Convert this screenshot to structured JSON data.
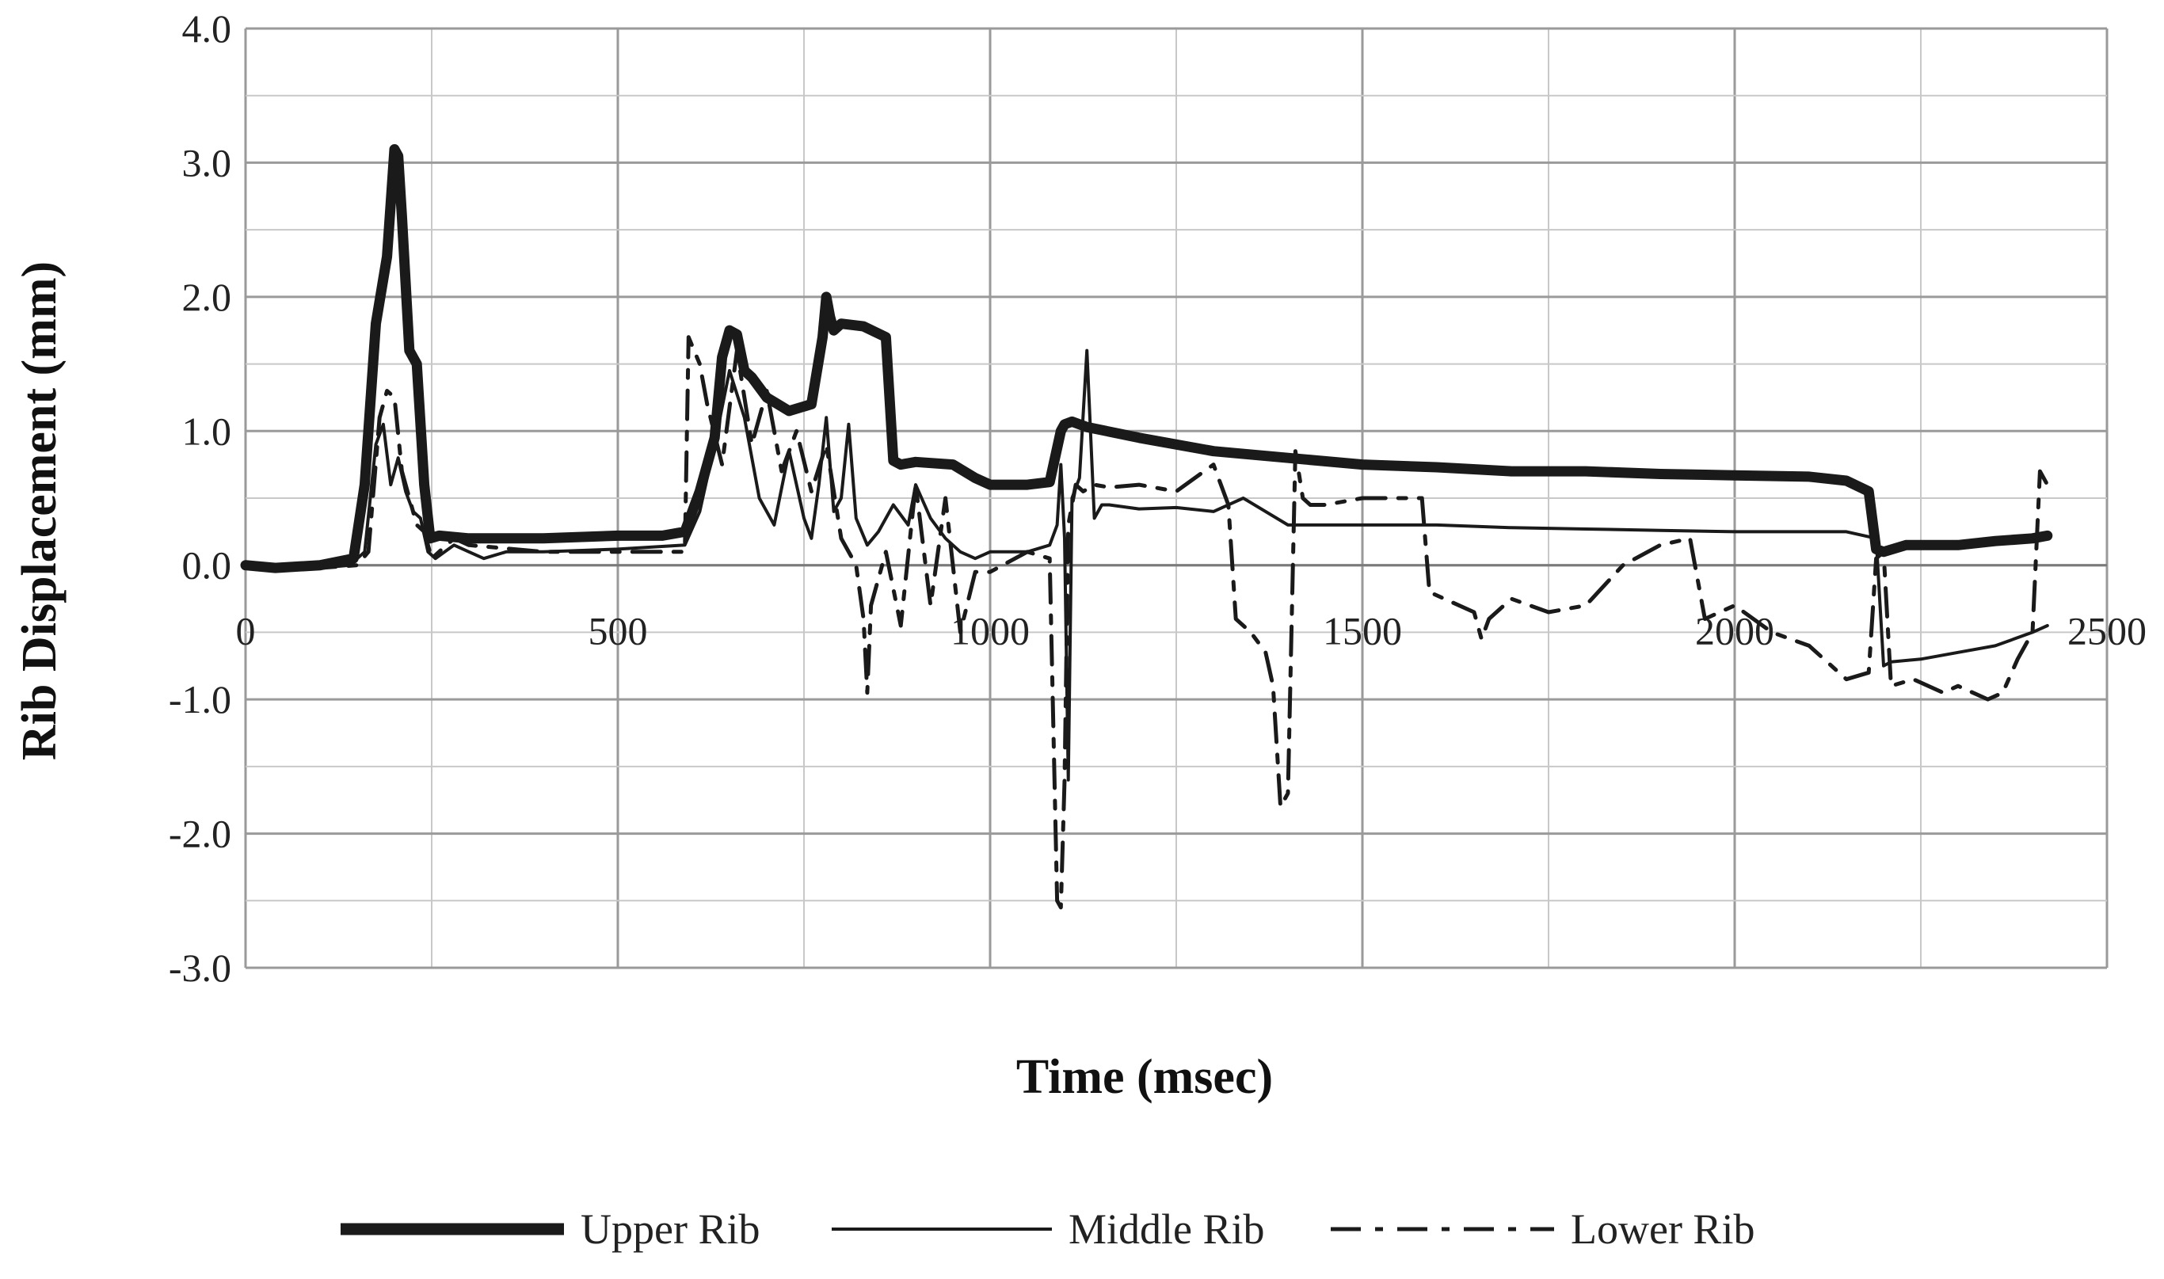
{
  "chart_data": {
    "type": "line",
    "title": "",
    "xlabel": "Time (msec)",
    "ylabel": "Rib Displacement (mm)",
    "xlim": [
      0,
      2500
    ],
    "ylim": [
      -3.0,
      4.0
    ],
    "x_major_ticks": [
      0,
      500,
      1000,
      1500,
      2000,
      2500
    ],
    "x_tick_labels": [
      "0",
      "500",
      "1000",
      "1500",
      "2000",
      "2500"
    ],
    "x_minor_step": 250,
    "y_major_ticks": [
      -3.0,
      -2.0,
      -1.0,
      0.0,
      1.0,
      2.0,
      3.0,
      4.0
    ],
    "y_tick_labels": [
      "-3.0",
      "-2.0",
      "-1.0",
      "0.0",
      "1.0",
      "2.0",
      "3.0",
      "4.0"
    ],
    "y_minor_step": 0.5,
    "grid": true,
    "legend_position": "bottom",
    "series": [
      {
        "name": "Upper Rib",
        "style": "thick-solid",
        "color": "#1a1a1a",
        "x": [
          0,
          40,
          100,
          145,
          160,
          175,
          190,
          200,
          205,
          210,
          220,
          230,
          240,
          248,
          260,
          300,
          350,
          400,
          500,
          560,
          590,
          610,
          630,
          640,
          650,
          660,
          670,
          680,
          700,
          730,
          760,
          775,
          780,
          785,
          790,
          800,
          830,
          860,
          870,
          880,
          900,
          950,
          980,
          1000,
          1050,
          1080,
          1095,
          1100,
          1110,
          1130,
          1200,
          1300,
          1400,
          1500,
          1600,
          1700,
          1800,
          1900,
          2000,
          2100,
          2150,
          2180,
          2190,
          2200,
          2230,
          2300,
          2350,
          2400,
          2420
        ],
        "values": [
          0.0,
          -0.02,
          0.0,
          0.05,
          0.6,
          1.8,
          2.3,
          3.1,
          3.05,
          2.6,
          1.6,
          1.5,
          0.6,
          0.2,
          0.22,
          0.2,
          0.2,
          0.2,
          0.22,
          0.22,
          0.25,
          0.55,
          0.95,
          1.55,
          1.75,
          1.72,
          1.45,
          1.4,
          1.25,
          1.15,
          1.2,
          1.7,
          2.0,
          1.85,
          1.75,
          1.8,
          1.78,
          1.7,
          0.78,
          0.75,
          0.77,
          0.75,
          0.65,
          0.6,
          0.6,
          0.62,
          1.0,
          1.05,
          1.07,
          1.03,
          0.95,
          0.85,
          0.8,
          0.75,
          0.73,
          0.7,
          0.7,
          0.68,
          0.67,
          0.66,
          0.63,
          0.55,
          0.12,
          0.1,
          0.15,
          0.15,
          0.18,
          0.2,
          0.22
        ]
      },
      {
        "name": "Middle Rib",
        "style": "thin-solid",
        "color": "#1a1a1a",
        "x": [
          0,
          80,
          140,
          160,
          175,
          185,
          195,
          205,
          215,
          225,
          235,
          245,
          255,
          280,
          300,
          320,
          350,
          400,
          500,
          590,
          610,
          630,
          650,
          670,
          690,
          710,
          730,
          750,
          760,
          770,
          780,
          790,
          800,
          810,
          820,
          835,
          850,
          870,
          890,
          900,
          920,
          940,
          960,
          980,
          1000,
          1050,
          1080,
          1090,
          1095,
          1100,
          1105,
          1110,
          1120,
          1130,
          1140,
          1150,
          1160,
          1200,
          1250,
          1300,
          1340,
          1400,
          1500,
          1600,
          1700,
          1800,
          1900,
          2000,
          2100,
          2150,
          2190,
          2200,
          2210,
          2250,
          2300,
          2350,
          2400,
          2420
        ],
        "values": [
          0.0,
          -0.03,
          0.0,
          0.1,
          0.9,
          1.05,
          0.6,
          0.8,
          0.55,
          0.4,
          0.35,
          0.1,
          0.05,
          0.15,
          0.1,
          0.05,
          0.1,
          0.1,
          0.12,
          0.15,
          0.4,
          0.9,
          1.45,
          1.1,
          0.5,
          0.3,
          0.85,
          0.35,
          0.2,
          0.6,
          1.1,
          0.4,
          0.5,
          1.05,
          0.35,
          0.15,
          0.25,
          0.45,
          0.3,
          0.6,
          0.35,
          0.2,
          0.1,
          0.05,
          0.1,
          0.1,
          0.15,
          0.3,
          0.75,
          0.2,
          -1.6,
          0.5,
          0.65,
          1.6,
          0.35,
          0.45,
          0.45,
          0.42,
          0.43,
          0.4,
          0.5,
          0.3,
          0.3,
          0.3,
          0.28,
          0.27,
          0.26,
          0.25,
          0.25,
          0.25,
          0.2,
          -0.75,
          -0.72,
          -0.7,
          -0.65,
          -0.6,
          -0.5,
          -0.45
        ]
      },
      {
        "name": "Lower Rib",
        "style": "dash-dot",
        "color": "#1a1a1a",
        "x": [
          0,
          100,
          150,
          165,
          180,
          190,
          200,
          210,
          220,
          230,
          240,
          250,
          280,
          300,
          400,
          500,
          590,
          595,
          610,
          620,
          640,
          660,
          680,
          700,
          720,
          740,
          760,
          780,
          800,
          820,
          830,
          835,
          840,
          860,
          880,
          900,
          920,
          940,
          960,
          980,
          1000,
          1050,
          1080,
          1090,
          1095,
          1100,
          1105,
          1115,
          1125,
          1140,
          1160,
          1200,
          1250,
          1300,
          1320,
          1330,
          1350,
          1370,
          1380,
          1390,
          1400,
          1410,
          1420,
          1430,
          1450,
          1500,
          1580,
          1590,
          1650,
          1660,
          1670,
          1700,
          1750,
          1800,
          1850,
          1900,
          1940,
          1960,
          2000,
          2050,
          2100,
          2150,
          2180,
          2190,
          2200,
          2210,
          2240,
          2280,
          2300,
          2340,
          2360,
          2380,
          2400,
          2410,
          2420
        ],
        "values": [
          0.0,
          -0.02,
          0.0,
          0.1,
          1.1,
          1.3,
          1.25,
          0.7,
          0.5,
          0.3,
          0.25,
          0.05,
          0.2,
          0.15,
          0.1,
          0.1,
          0.1,
          1.7,
          1.5,
          1.2,
          0.75,
          1.6,
          0.9,
          1.3,
          0.7,
          1.0,
          0.55,
          0.9,
          0.2,
          0.0,
          -0.4,
          -0.95,
          -0.3,
          0.1,
          -0.45,
          0.6,
          -0.3,
          0.5,
          -0.5,
          -0.05,
          -0.05,
          0.1,
          0.05,
          -2.5,
          -2.55,
          -1.6,
          0.3,
          0.6,
          0.55,
          0.6,
          0.58,
          0.6,
          0.55,
          0.75,
          0.45,
          -0.4,
          -0.5,
          -0.65,
          -0.9,
          -1.8,
          -1.7,
          0.85,
          0.5,
          0.45,
          0.45,
          0.5,
          0.5,
          -0.2,
          -0.35,
          -0.55,
          -0.4,
          -0.25,
          -0.35,
          -0.3,
          0.0,
          0.15,
          0.2,
          -0.4,
          -0.3,
          -0.5,
          -0.6,
          -0.85,
          -0.8,
          0.05,
          0.1,
          -0.9,
          -0.85,
          -0.95,
          -0.9,
          -1.0,
          -0.95,
          -0.7,
          -0.5,
          0.7,
          0.6
        ]
      }
    ]
  }
}
